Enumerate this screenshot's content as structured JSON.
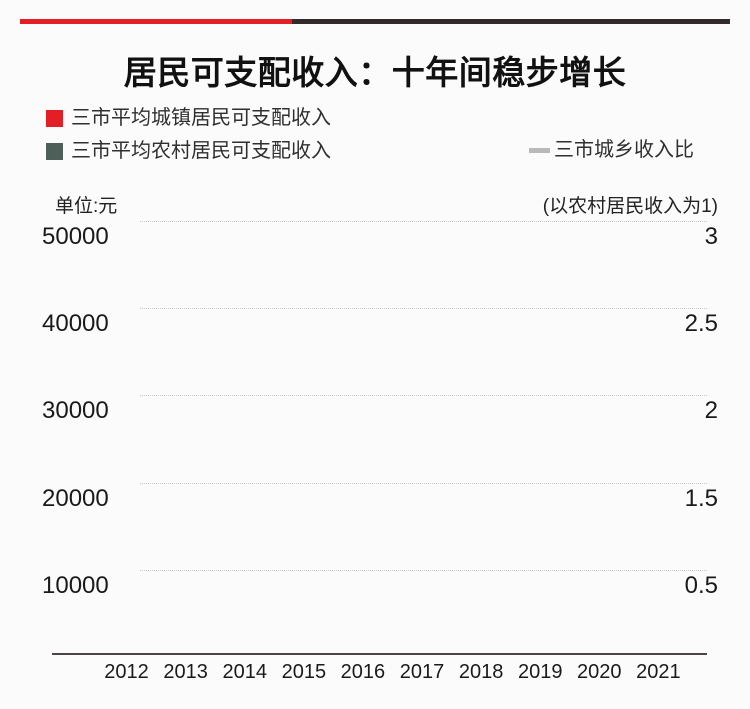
{
  "title": "居民可支配收入：十年间稳步增长",
  "accent_bar": {
    "red": "#e31e24",
    "dark": "#332b2b"
  },
  "legend": {
    "items": [
      {
        "label": "三市平均城镇居民可支配收入",
        "marker": "square",
        "color": "#e31e24"
      },
      {
        "label": "三市平均农村居民可支配收入",
        "marker": "square",
        "color": "#4e5f5a"
      },
      {
        "label": "三市城乡收入比",
        "marker": "line",
        "color": "#b9b9b9"
      }
    ]
  },
  "axes": {
    "left_unit": "单位:元",
    "right_unit": "(以农村居民收入为1)",
    "left_ticks": [
      "50000",
      "40000",
      "30000",
      "20000",
      "10000"
    ],
    "right_ticks": [
      "3",
      "2.5",
      "2",
      "1.5",
      "0.5"
    ],
    "x_ticks": [
      "2012",
      "2013",
      "2014",
      "2015",
      "2016",
      "2017",
      "2018",
      "2019",
      "2020",
      "2021"
    ]
  },
  "chart_data": {
    "type": "bar",
    "subtype": "dual-axis bar+line combo (frame shows axes and gridlines only, no series rendered)",
    "title": "居民可支配收入：十年间稳步增长",
    "categories": [
      "2012",
      "2013",
      "2014",
      "2015",
      "2016",
      "2017",
      "2018",
      "2019",
      "2020",
      "2021"
    ],
    "series": [
      {
        "name": "三市平均城镇居民可支配收入",
        "type": "bar",
        "axis": "left",
        "color": "#e31e24",
        "values": []
      },
      {
        "name": "三市平均农村居民可支配收入",
        "type": "bar",
        "axis": "left",
        "color": "#4e5f5a",
        "values": []
      },
      {
        "name": "三市城乡收入比",
        "type": "line",
        "axis": "right",
        "color": "#b9b9b9",
        "values": []
      }
    ],
    "left_axis": {
      "label": "单位:元",
      "ticks": [
        50000,
        40000,
        30000,
        20000,
        10000
      ],
      "range": [
        0,
        50000
      ]
    },
    "right_axis": {
      "label": "(以农村居民收入为1)",
      "ticks": [
        3,
        2.5,
        2,
        1.5,
        0.5
      ]
    },
    "grid": "horizontal dotted gridlines on",
    "legend_position": "top-left (bars) and top-right (line)"
  }
}
